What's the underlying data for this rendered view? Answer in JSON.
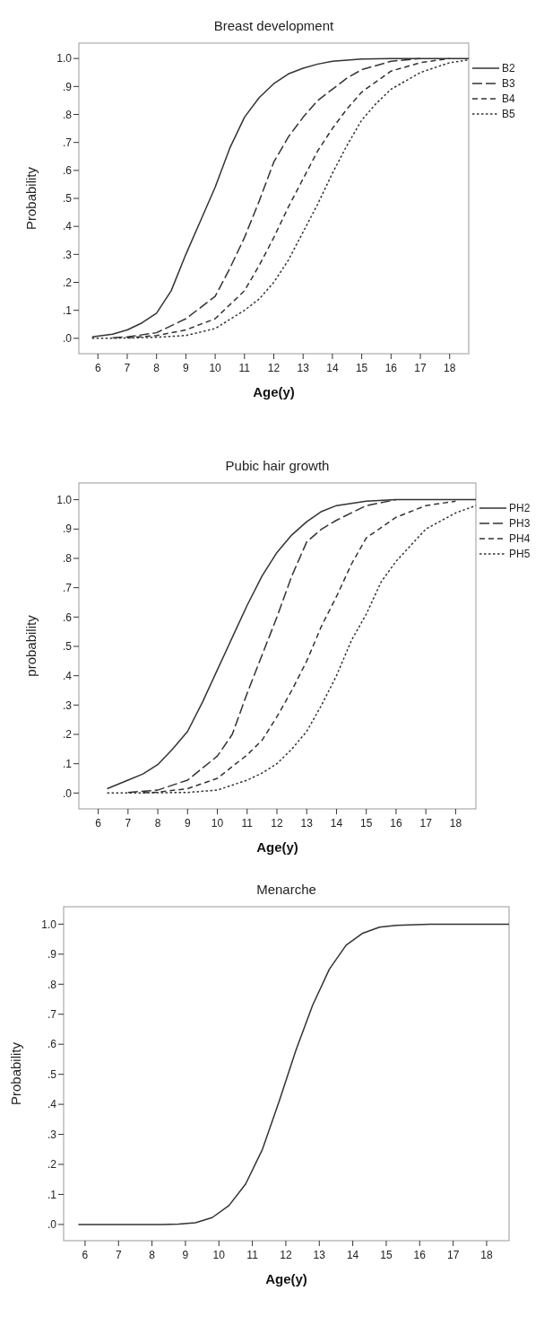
{
  "chart_data": [
    {
      "type": "line",
      "title": "Breast development",
      "xlabel": "Age(y)",
      "ylabel": "Probability",
      "xlim": [
        5.35,
        18.65
      ],
      "ylim": [
        -0.055,
        1.055
      ],
      "xticks": [
        6,
        7,
        8,
        9,
        10,
        11,
        12,
        13,
        14,
        15,
        16,
        17,
        18
      ],
      "yticks": [
        {
          "value": 0,
          "label": ".0"
        },
        {
          "value": 0.1,
          "label": ".1"
        },
        {
          "value": 0.2,
          "label": ".2"
        },
        {
          "value": 0.3,
          "label": ".3"
        },
        {
          "value": 0.4,
          "label": ".4"
        },
        {
          "value": 0.5,
          "label": ".5"
        },
        {
          "value": 0.6,
          "label": ".6"
        },
        {
          "value": 0.7,
          "label": ".7"
        },
        {
          "value": 0.8,
          "label": ".8"
        },
        {
          "value": 0.9,
          "label": ".9"
        },
        {
          "value": 1,
          "label": "1.0"
        }
      ],
      "legend": "right",
      "series": [
        {
          "name": "B2",
          "color": "#333333",
          "line_style": "solid",
          "x": [
            5.8,
            6.5,
            7,
            7.5,
            8,
            8.5,
            9,
            9.5,
            10,
            10.5,
            11,
            11.5,
            12,
            12.5,
            13,
            13.5,
            14,
            15,
            16,
            18.65
          ],
          "values": [
            0.005,
            0.015,
            0.03,
            0.055,
            0.09,
            0.17,
            0.3,
            0.42,
            0.54,
            0.68,
            0.79,
            0.86,
            0.91,
            0.945,
            0.965,
            0.98,
            0.99,
            0.998,
            1,
            1
          ]
        },
        {
          "name": "B3",
          "color": "#333333",
          "line_style": "longdash",
          "x": [
            6.5,
            7,
            8,
            9,
            10,
            10.5,
            11,
            11.5,
            12,
            12.5,
            13,
            13.5,
            14,
            14.5,
            15,
            16,
            17
          ],
          "values": [
            0.002,
            0.005,
            0.02,
            0.07,
            0.15,
            0.25,
            0.36,
            0.49,
            0.63,
            0.72,
            0.79,
            0.85,
            0.89,
            0.93,
            0.96,
            0.99,
            1
          ]
        },
        {
          "name": "B4",
          "color": "#333333",
          "line_style": "dashed",
          "x": [
            7,
            8,
            9,
            10,
            11,
            11.5,
            12,
            12.5,
            13,
            13.5,
            14,
            14.5,
            15,
            16,
            17,
            18
          ],
          "values": [
            0.002,
            0.01,
            0.03,
            0.07,
            0.17,
            0.26,
            0.36,
            0.47,
            0.57,
            0.67,
            0.75,
            0.82,
            0.88,
            0.955,
            0.985,
            1
          ]
        },
        {
          "name": "B5",
          "color": "#333333",
          "line_style": "dotted",
          "x": [
            5.8,
            7,
            8,
            9,
            10,
            11,
            11.5,
            12,
            12.5,
            13,
            13.5,
            14,
            14.5,
            15,
            15.5,
            16,
            17,
            18,
            18.65
          ],
          "values": [
            0,
            0.001,
            0.004,
            0.01,
            0.035,
            0.1,
            0.14,
            0.2,
            0.28,
            0.38,
            0.48,
            0.59,
            0.69,
            0.78,
            0.84,
            0.89,
            0.95,
            0.985,
            0.995
          ]
        }
      ]
    },
    {
      "type": "line",
      "title": "Pubic hair growth",
      "xlabel": "Age(y)",
      "ylabel": "probability",
      "xlim": [
        5.35,
        18.68
      ],
      "ylim": [
        -0.054,
        1.057
      ],
      "xticks": [
        6,
        7,
        8,
        9,
        10,
        11,
        12,
        13,
        14,
        15,
        16,
        17,
        18
      ],
      "yticks": [
        {
          "value": 0,
          "label": ".0"
        },
        {
          "value": 0.1,
          "label": ".1"
        },
        {
          "value": 0.2,
          "label": ".2"
        },
        {
          "value": 0.3,
          "label": ".3"
        },
        {
          "value": 0.4,
          "label": ".4"
        },
        {
          "value": 0.5,
          "label": ".5"
        },
        {
          "value": 0.6,
          "label": ".6"
        },
        {
          "value": 0.7,
          "label": ".7"
        },
        {
          "value": 0.8,
          "label": ".8"
        },
        {
          "value": 0.9,
          "label": ".9"
        },
        {
          "value": 1,
          "label": "1.0"
        }
      ],
      "legend": "right",
      "series": [
        {
          "name": "PH2",
          "color": "#333333",
          "line_style": "solid",
          "x": [
            6.3,
            7,
            7.5,
            8,
            8.5,
            9,
            9.5,
            10,
            10.5,
            11,
            11.5,
            12,
            12.5,
            13,
            13.5,
            14,
            15,
            16,
            18.68
          ],
          "values": [
            0.015,
            0.044,
            0.065,
            0.097,
            0.15,
            0.21,
            0.31,
            0.42,
            0.53,
            0.64,
            0.74,
            0.82,
            0.88,
            0.925,
            0.96,
            0.98,
            0.995,
            1,
            1
          ]
        },
        {
          "name": "PH3",
          "color": "#333333",
          "line_style": "longdash",
          "x": [
            7,
            8,
            9,
            10,
            10.5,
            11,
            11.5,
            12,
            12.5,
            13,
            13.5,
            14,
            15,
            16
          ],
          "values": [
            0.002,
            0.01,
            0.044,
            0.126,
            0.2,
            0.34,
            0.47,
            0.6,
            0.74,
            0.856,
            0.9,
            0.93,
            0.98,
            1
          ]
        },
        {
          "name": "PH4",
          "color": "#333333",
          "line_style": "dashed",
          "x": [
            7.5,
            8,
            9,
            10,
            11,
            11.5,
            12,
            12.5,
            13,
            13.5,
            14,
            14.5,
            15,
            16,
            17,
            18
          ],
          "values": [
            0.001,
            0.003,
            0.015,
            0.05,
            0.13,
            0.18,
            0.26,
            0.35,
            0.45,
            0.57,
            0.67,
            0.78,
            0.87,
            0.94,
            0.98,
            0.995
          ]
        },
        {
          "name": "PH5",
          "color": "#333333",
          "line_style": "dotted",
          "x": [
            6.3,
            8,
            9,
            10,
            11,
            11.5,
            12,
            12.5,
            13,
            13.5,
            14,
            14.5,
            15,
            15.5,
            16,
            17,
            18,
            18.68
          ],
          "values": [
            0,
            0.001,
            0.002,
            0.01,
            0.044,
            0.068,
            0.1,
            0.15,
            0.21,
            0.3,
            0.4,
            0.52,
            0.61,
            0.72,
            0.79,
            0.9,
            0.955,
            0.98
          ]
        }
      ]
    },
    {
      "type": "line",
      "title": "Menarche",
      "xlabel": "Age(y)",
      "ylabel": "Probability",
      "xlim": [
        5.36,
        18.67
      ],
      "ylim": [
        -0.054,
        1.058
      ],
      "xticks": [
        6,
        7,
        8,
        9,
        10,
        11,
        12,
        13,
        14,
        15,
        16,
        17,
        18
      ],
      "yticks": [
        {
          "value": 0,
          "label": ".0"
        },
        {
          "value": 0.1,
          "label": ".1"
        },
        {
          "value": 0.2,
          "label": ".2"
        },
        {
          "value": 0.3,
          "label": ".3"
        },
        {
          "value": 0.4,
          "label": ".4"
        },
        {
          "value": 0.5,
          "label": ".5"
        },
        {
          "value": 0.6,
          "label": ".6"
        },
        {
          "value": 0.7,
          "label": ".7"
        },
        {
          "value": 0.8,
          "label": ".8"
        },
        {
          "value": 0.9,
          "label": ".9"
        },
        {
          "value": 1,
          "label": "1.0"
        }
      ],
      "series": [
        {
          "color": "#333333",
          "line_style": "solid",
          "x": [
            5.8,
            8.3,
            8.8,
            9.3,
            9.8,
            10.3,
            10.8,
            11.3,
            11.8,
            12.3,
            12.8,
            13.3,
            13.8,
            14.3,
            14.8,
            15.3,
            16.3,
            18.67
          ],
          "values": [
            0,
            0,
            0.001,
            0.006,
            0.023,
            0.063,
            0.135,
            0.25,
            0.41,
            0.58,
            0.73,
            0.85,
            0.93,
            0.97,
            0.99,
            0.996,
            1,
            1
          ]
        }
      ]
    }
  ]
}
